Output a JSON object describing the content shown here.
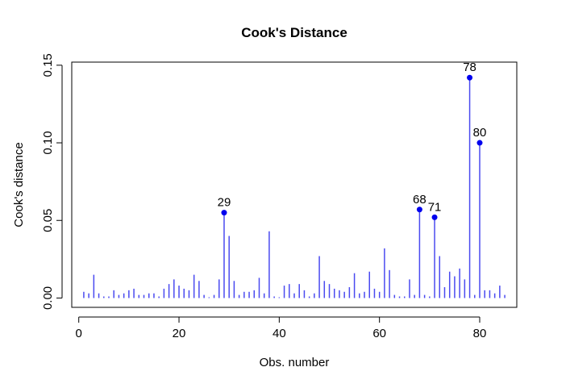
{
  "chart_data": {
    "type": "bar",
    "title": "Cook's Distance",
    "xlabel": "Obs. number",
    "ylabel": "Cook's distance",
    "xlim": [
      -1.4,
      87.4
    ],
    "ylim": [
      -0.006,
      0.152
    ],
    "xticks": [
      0,
      20,
      40,
      60,
      80
    ],
    "xtick_labels": [
      "0",
      "20",
      "40",
      "60",
      "80"
    ],
    "yticks": [
      0.0,
      0.05,
      0.1,
      0.15
    ],
    "ytick_labels": [
      "0.00",
      "0.05",
      "0.10",
      "0.15"
    ],
    "grid": false,
    "colors": {
      "bars": "#4a4af0",
      "points": "#0000ee",
      "axis": "#000000"
    },
    "x": [
      1,
      2,
      3,
      4,
      5,
      6,
      7,
      8,
      9,
      10,
      11,
      12,
      13,
      14,
      15,
      16,
      17,
      18,
      19,
      20,
      21,
      22,
      23,
      24,
      25,
      26,
      27,
      28,
      29,
      30,
      31,
      32,
      33,
      34,
      35,
      36,
      37,
      38,
      39,
      40,
      41,
      42,
      43,
      44,
      45,
      46,
      47,
      48,
      49,
      50,
      51,
      52,
      53,
      54,
      55,
      56,
      57,
      58,
      59,
      60,
      61,
      62,
      63,
      64,
      65,
      66,
      67,
      68,
      69,
      70,
      71,
      72,
      73,
      74,
      75,
      76,
      77,
      78,
      79,
      80,
      81,
      82,
      83,
      84,
      85
    ],
    "values": [
      0.004,
      0.003,
      0.015,
      0.003,
      0.001,
      0.001,
      0.005,
      0.002,
      0.003,
      0.005,
      0.006,
      0.002,
      0.002,
      0.003,
      0.003,
      0.001,
      0.006,
      0.009,
      0.012,
      0.008,
      0.006,
      0.005,
      0.015,
      0.011,
      0.002,
      0.0005,
      0.002,
      0.012,
      0.055,
      0.04,
      0.011,
      0.002,
      0.004,
      0.004,
      0.005,
      0.013,
      0.003,
      0.043,
      0.001,
      0.0005,
      0.008,
      0.009,
      0.003,
      0.009,
      0.005,
      0.001,
      0.003,
      0.027,
      0.011,
      0.009,
      0.006,
      0.005,
      0.004,
      0.007,
      0.016,
      0.003,
      0.004,
      0.017,
      0.006,
      0.004,
      0.032,
      0.018,
      0.002,
      0.001,
      0.001,
      0.012,
      0.002,
      0.057,
      0.002,
      0.001,
      0.052,
      0.027,
      0.007,
      0.017,
      0.014,
      0.019,
      0.012,
      0.142,
      0.002,
      0.1,
      0.005,
      0.005,
      0.003,
      0.008,
      0.002
    ],
    "highlighted": [
      {
        "x": 29,
        "value": 0.055,
        "label": "29"
      },
      {
        "x": 68,
        "value": 0.057,
        "label": "68"
      },
      {
        "x": 71,
        "value": 0.052,
        "label": "71"
      },
      {
        "x": 78,
        "value": 0.142,
        "label": "78"
      },
      {
        "x": 80,
        "value": 0.1,
        "label": "80"
      }
    ]
  }
}
